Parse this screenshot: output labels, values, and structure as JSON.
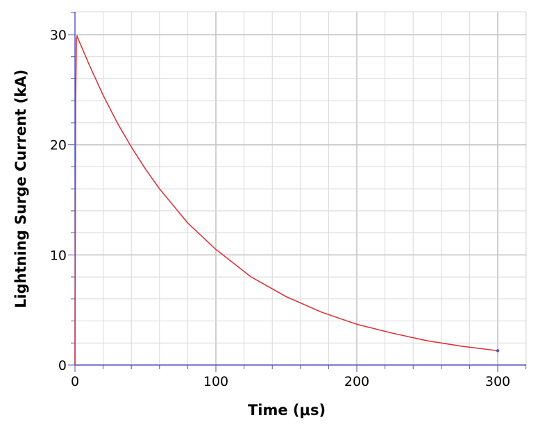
{
  "chart_data": {
    "type": "line",
    "title": "",
    "xlabel": "Time (μs)",
    "ylabel": "Lightning Surge Current (kA)",
    "xlim": [
      0,
      300
    ],
    "ylim": [
      0,
      30
    ],
    "x_ticks": [
      "0",
      "100",
      "200",
      "300"
    ],
    "y_ticks": [
      "0",
      "10",
      "20",
      "30"
    ],
    "grid": true,
    "legend": "none",
    "colors": {
      "series": "#d9363e",
      "axis": "#5050c0",
      "grid": "#d8d8d8",
      "grid_major": "#c4c4c4"
    },
    "series": [
      {
        "x": [
          0,
          0.5,
          1,
          1.5,
          2,
          3,
          5,
          10,
          20,
          30,
          40,
          50,
          60,
          80,
          100,
          125,
          150,
          175,
          200,
          225,
          250,
          275,
          300
        ],
        "y": [
          0,
          24,
          29.5,
          29.9,
          29.7,
          29.4,
          28.8,
          27.3,
          24.5,
          22.0,
          19.8,
          17.8,
          16.0,
          12.9,
          10.5,
          8.0,
          6.2,
          4.8,
          3.7,
          2.9,
          2.2,
          1.7,
          1.3
        ]
      }
    ]
  }
}
